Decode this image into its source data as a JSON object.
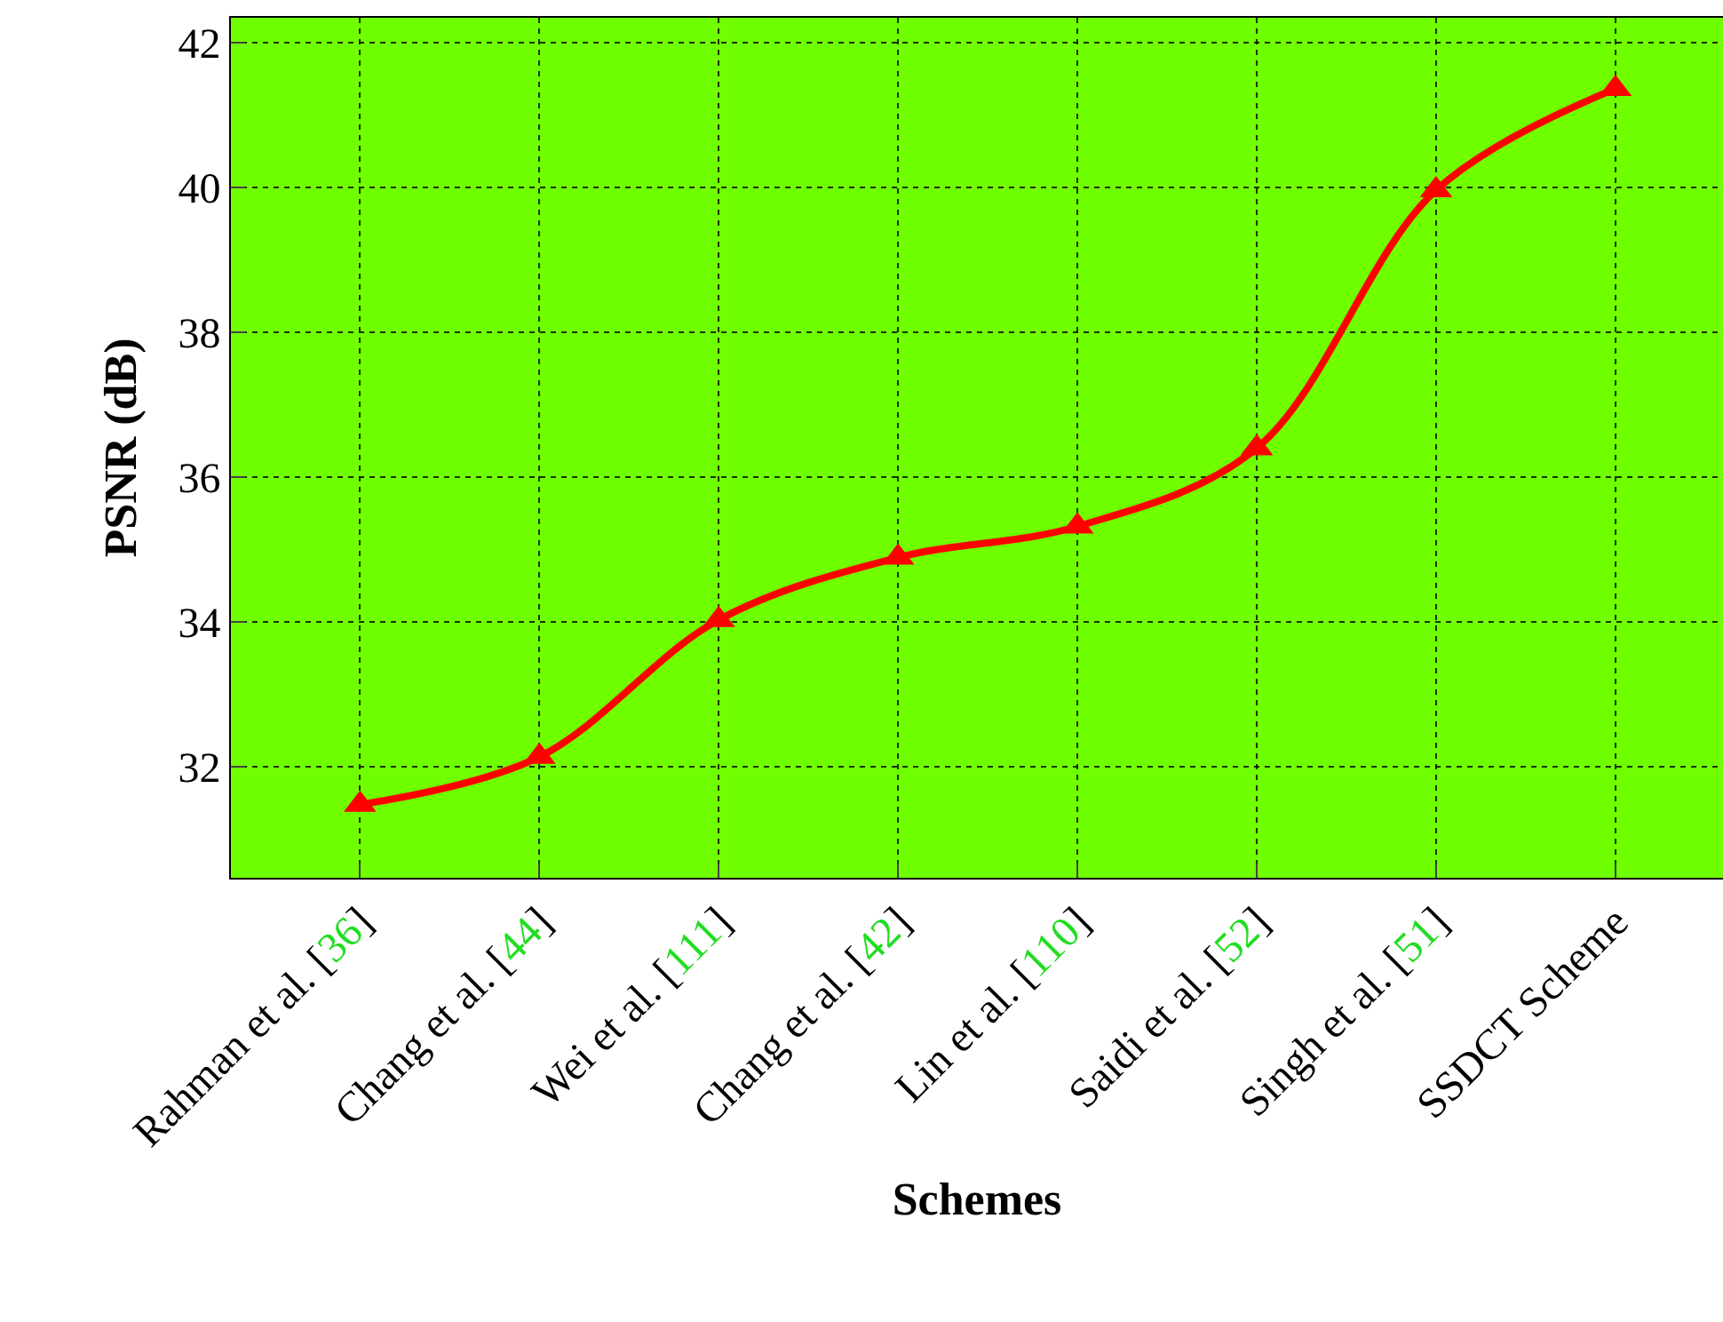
{
  "chart_data": {
    "type": "line",
    "xlabel": "Schemes",
    "ylabel": "PSNR (dB)",
    "categories": [
      "Rahman et al. [36]",
      "Chang et al. [44]",
      "Wei et al. [111]",
      "Chang et al. [42]",
      "Lin et al. [110]",
      "Saidi et al. [52]",
      "Singh et al. [51]",
      "SSDCT Scheme"
    ],
    "series": [
      {
        "color": "#ff0000",
        "values": [
          31.48,
          32.14,
          34.03,
          34.89,
          35.32,
          36.4,
          39.96,
          41.36
        ]
      }
    ],
    "ylim": [
      30.47,
      42.34
    ],
    "yticks": [
      32,
      34,
      36,
      38,
      40,
      42
    ],
    "grid": true,
    "marker": "triangle",
    "line_style": "solid",
    "legend": false
  }
}
